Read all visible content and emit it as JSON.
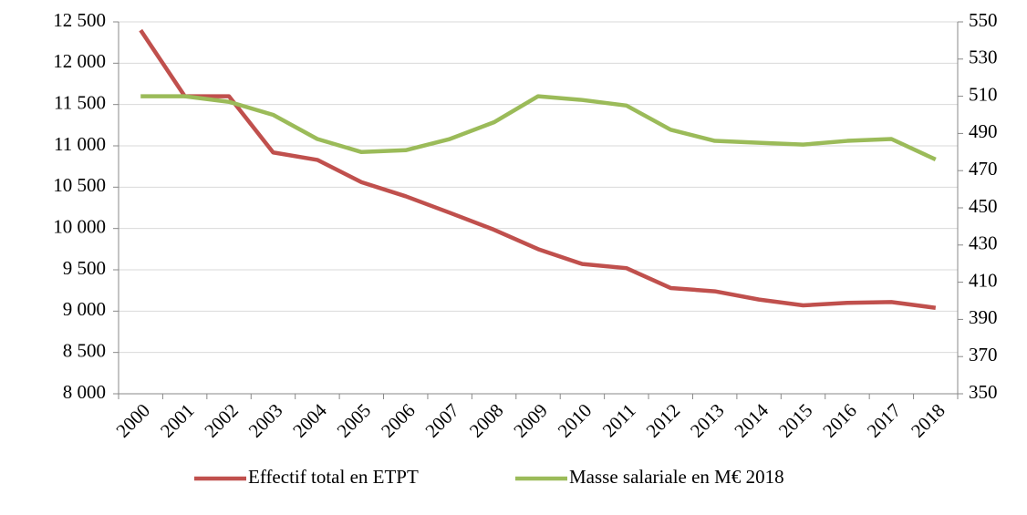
{
  "chart_data": {
    "type": "line",
    "categories": [
      "2000",
      "2001",
      "2002",
      "2003",
      "2004",
      "2005",
      "2006",
      "2007",
      "2008",
      "2009",
      "2010",
      "2011",
      "2012",
      "2013",
      "2014",
      "2015",
      "2016",
      "2017",
      "2018"
    ],
    "series": [
      {
        "name": "Effectif total en ETPT",
        "color": "#c0504d",
        "axis": "y",
        "values": [
          12400,
          11600,
          11600,
          10920,
          10830,
          10560,
          10390,
          10190,
          9985,
          9750,
          9570,
          9520,
          9280,
          9240,
          9140,
          9070,
          9100,
          9110,
          9040
        ]
      },
      {
        "name": "Masse salariale en M€ 2018",
        "color": "#9bbb59",
        "axis": "y2",
        "values": [
          510,
          510,
          507,
          500,
          487,
          480,
          481,
          487,
          496,
          510,
          508,
          505,
          492,
          486,
          485,
          484,
          486,
          487,
          476
        ]
      }
    ],
    "ylim": [
      8000,
      12500
    ],
    "yticks": [
      {
        "value": 8000,
        "label": "8 000"
      },
      {
        "value": 8500,
        "label": "8 500"
      },
      {
        "value": 9000,
        "label": "9 000"
      },
      {
        "value": 9500,
        "label": "9 500"
      },
      {
        "value": 10000,
        "label": "10 000"
      },
      {
        "value": 10500,
        "label": "10 500"
      },
      {
        "value": 11000,
        "label": "11 000"
      },
      {
        "value": 11500,
        "label": "11 500"
      },
      {
        "value": 12000,
        "label": "12 000"
      },
      {
        "value": 12500,
        "label": "12 500"
      }
    ],
    "y2lim": [
      350,
      550
    ],
    "y2ticks": [
      350,
      370,
      390,
      410,
      430,
      450,
      470,
      490,
      510,
      530,
      550
    ],
    "grid": true,
    "legend": "bottom"
  }
}
